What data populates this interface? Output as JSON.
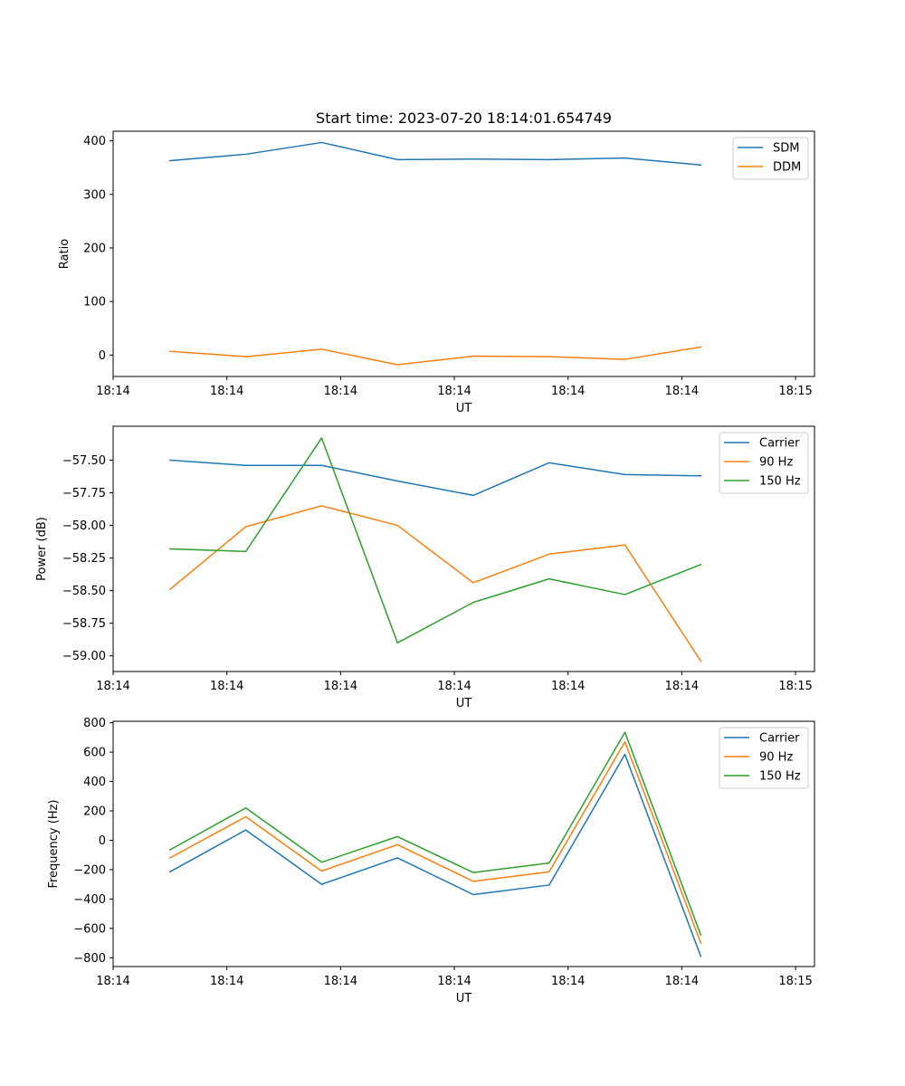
{
  "figure": {
    "title": "Start time: 2023-07-20 18:14:01.654749"
  },
  "chart_data": [
    {
      "type": "line",
      "title": "Start time: 2023-07-20 18:14:01.654749",
      "xlabel": "UT",
      "ylabel": "Ratio",
      "x": [
        0,
        1,
        2,
        3,
        4,
        5,
        6,
        7
      ],
      "xlim": [
        -0.75,
        8.5
      ],
      "x_ticks": [
        -0.75,
        0.75,
        2.25,
        3.75,
        5.25,
        6.75,
        8.25
      ],
      "x_tick_labels": [
        "18:14",
        "18:14",
        "18:14",
        "18:14",
        "18:14",
        "18:14",
        "18:15"
      ],
      "ylim": [
        -40,
        418
      ],
      "y_ticks": [
        0,
        100,
        200,
        300,
        400
      ],
      "y_tick_labels": [
        "0",
        "100",
        "200",
        "300",
        "400"
      ],
      "legend_position": "top-right",
      "series": [
        {
          "name": "SDM",
          "color": "#1f77b4",
          "values": [
            363,
            375,
            397,
            365,
            366,
            365,
            368,
            355
          ]
        },
        {
          "name": "DDM",
          "color": "#ff7f0e",
          "values": [
            7,
            -3,
            11,
            -18,
            -2,
            -3,
            -8,
            15
          ]
        }
      ]
    },
    {
      "type": "line",
      "title": "",
      "xlabel": "UT",
      "ylabel": "Power (dB)",
      "x": [
        0,
        1,
        2,
        3,
        4,
        5,
        6,
        7
      ],
      "xlim": [
        -0.75,
        8.5
      ],
      "x_ticks": [
        -0.75,
        0.75,
        2.25,
        3.75,
        5.25,
        6.75,
        8.25
      ],
      "x_tick_labels": [
        "18:14",
        "18:14",
        "18:14",
        "18:14",
        "18:14",
        "18:14",
        "18:15"
      ],
      "ylim": [
        -59.12,
        -57.24
      ],
      "y_ticks": [
        -59.0,
        -58.75,
        -58.5,
        -58.25,
        -58.0,
        -57.75,
        -57.5
      ],
      "y_tick_labels": [
        "−59.00",
        "−58.75",
        "−58.50",
        "−58.25",
        "−58.00",
        "−57.75",
        "−57.50"
      ],
      "legend_position": "top-right",
      "series": [
        {
          "name": "Carrier",
          "color": "#1f77b4",
          "values": [
            -57.5,
            -57.54,
            -57.54,
            -57.66,
            -57.77,
            -57.52,
            -57.61,
            -57.62
          ]
        },
        {
          "name": "90 Hz",
          "color": "#ff7f0e",
          "values": [
            -58.49,
            -58.01,
            -57.85,
            -58.0,
            -58.44,
            -58.22,
            -58.15,
            -59.04
          ]
        },
        {
          "name": "150 Hz",
          "color": "#2ca02c",
          "values": [
            -58.18,
            -58.2,
            -57.33,
            -58.9,
            -58.59,
            -58.41,
            -58.53,
            -58.3
          ]
        }
      ]
    },
    {
      "type": "line",
      "title": "",
      "xlabel": "UT",
      "ylabel": "Frequency (Hz)",
      "x": [
        0,
        1,
        2,
        3,
        4,
        5,
        6,
        7
      ],
      "xlim": [
        -0.75,
        8.5
      ],
      "x_ticks": [
        -0.75,
        0.75,
        2.25,
        3.75,
        5.25,
        6.75,
        8.25
      ],
      "x_tick_labels": [
        "18:14",
        "18:14",
        "18:14",
        "18:14",
        "18:14",
        "18:14",
        "18:15"
      ],
      "ylim": [
        -860,
        810
      ],
      "y_ticks": [
        -800,
        -600,
        -400,
        -200,
        0,
        200,
        400,
        600,
        800
      ],
      "y_tick_labels": [
        "−800",
        "−600",
        "−400",
        "−200",
        "0",
        "200",
        "400",
        "600",
        "800"
      ],
      "legend_position": "top-right",
      "series": [
        {
          "name": "Carrier",
          "color": "#1f77b4",
          "values": [
            -215,
            70,
            -300,
            -120,
            -370,
            -305,
            585,
            -790
          ]
        },
        {
          "name": "90 Hz",
          "color": "#ff7f0e",
          "values": [
            -120,
            160,
            -210,
            -30,
            -280,
            -215,
            670,
            -700
          ]
        },
        {
          "name": "150 Hz",
          "color": "#2ca02c",
          "values": [
            -65,
            220,
            -150,
            25,
            -220,
            -155,
            735,
            -645
          ]
        }
      ]
    }
  ]
}
